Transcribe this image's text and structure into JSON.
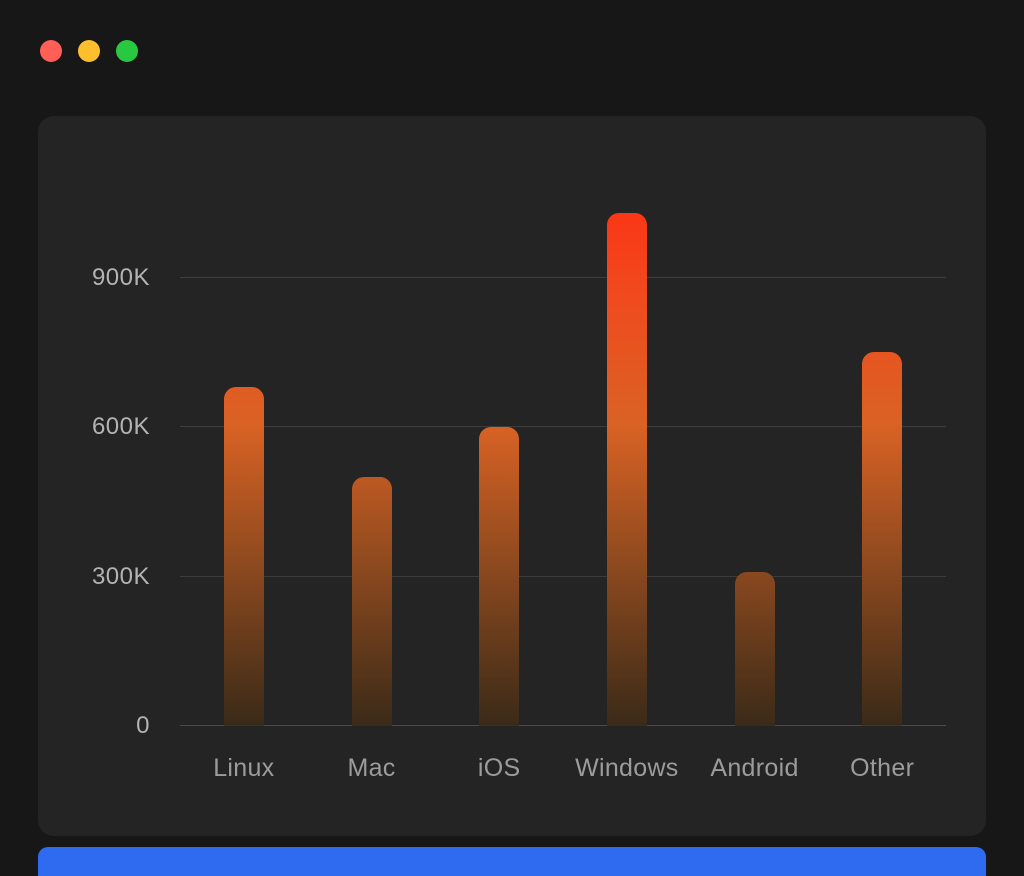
{
  "window": {
    "traffic_lights": [
      {
        "name": "close",
        "color": "#ff5f57"
      },
      {
        "name": "minimize",
        "color": "#fdbf2d"
      },
      {
        "name": "zoom",
        "color": "#28c840"
      }
    ]
  },
  "chart_data": {
    "type": "bar",
    "title": "",
    "xlabel": "",
    "ylabel": "",
    "categories": [
      "Linux",
      "Mac",
      "iOS",
      "Windows",
      "Android",
      "Other"
    ],
    "values": [
      680000,
      500000,
      600000,
      1030000,
      310000,
      750000
    ],
    "ylim": [
      0,
      1100000
    ],
    "yticks": [
      {
        "value": 0,
        "label": "0"
      },
      {
        "value": 300000,
        "label": "300K"
      },
      {
        "value": 600000,
        "label": "600K"
      },
      {
        "value": 900000,
        "label": "900K"
      }
    ],
    "grid": true,
    "legend": "none",
    "colors": {
      "bar_top": "#ff2e12",
      "bar_mid": "#d96224",
      "bar_bottom": "#3a2a18",
      "gridline": "#3c3c3c",
      "baseline": "#4b4b4b",
      "y_label": "#b3b3b3",
      "x_label": "#9c9c9c",
      "panel_bg": "#242424",
      "page_bg": "#171717",
      "bottom_accent": "#2f6bf0"
    }
  }
}
